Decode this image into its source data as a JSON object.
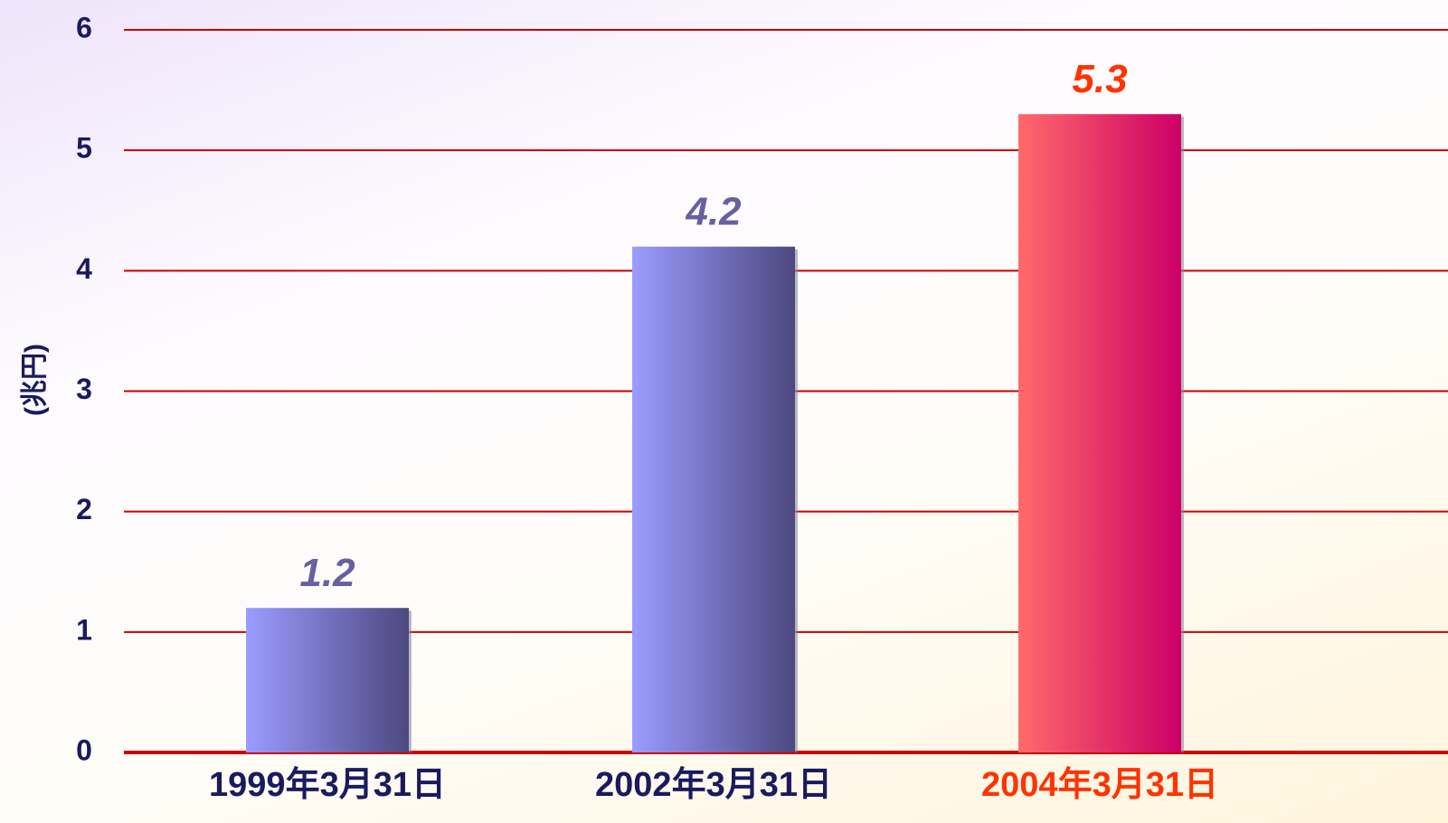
{
  "chart_data": {
    "type": "bar",
    "y_label": "(兆円)",
    "categories": [
      "1999年3月31日",
      "2002年3月31日",
      "2004年3月31日"
    ],
    "values": [
      1.2,
      4.2,
      5.3
    ],
    "bar_gradients": [
      [
        "#9a9cff",
        "#4e4880"
      ],
      [
        "#9a9cff",
        "#4e4880"
      ],
      [
        "#ff6a6a",
        "#cc0066"
      ]
    ],
    "value_label_colors": [
      "#6a5fa0",
      "#6a5fa0",
      "#ff3300"
    ],
    "category_label_colors": [
      "#1a1a5e",
      "#1a1a5e",
      "#ff3300"
    ],
    "tick_label_color": "#1a1a5e",
    "grid_color": "#cc0000",
    "ylim": [
      0,
      6
    ],
    "yticks": [
      0,
      1,
      2,
      3,
      4,
      5,
      6
    ],
    "grid": true
  }
}
